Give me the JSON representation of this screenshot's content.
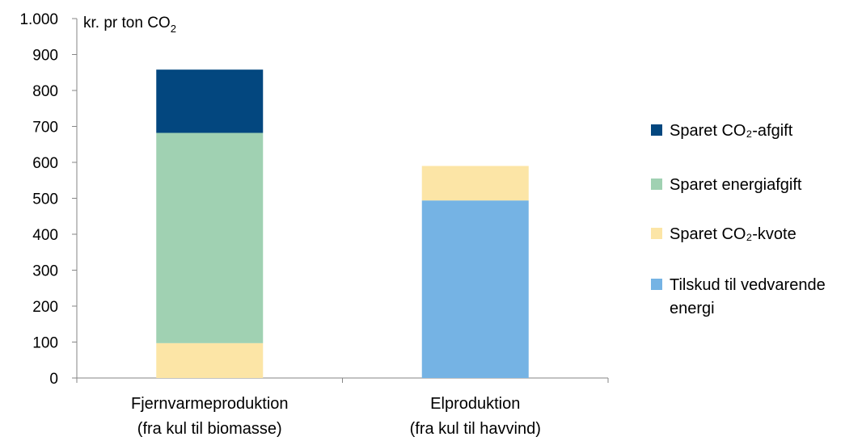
{
  "chart_data": {
    "type": "bar",
    "stacked": true,
    "unit_label": {
      "main": "kr. pr ton CO",
      "sub": "2"
    },
    "ylim": [
      0,
      1000
    ],
    "yticks": [
      {
        "value": 0,
        "label": "0"
      },
      {
        "value": 100,
        "label": "100"
      },
      {
        "value": 200,
        "label": "200"
      },
      {
        "value": 300,
        "label": "300"
      },
      {
        "value": 400,
        "label": "400"
      },
      {
        "value": 500,
        "label": "500"
      },
      {
        "value": 600,
        "label": "600"
      },
      {
        "value": 700,
        "label": "700"
      },
      {
        "value": 800,
        "label": "800"
      },
      {
        "value": 900,
        "label": "900"
      },
      {
        "value": 1000,
        "label": "1.000"
      }
    ],
    "grid": false,
    "legend_position": "right",
    "categories": [
      {
        "lines": [
          "Fjernvarmeproduktion",
          "(fra kul til biomasse)"
        ]
      },
      {
        "lines": [
          "Elproduktion",
          "(fra kul til havvind)"
        ]
      }
    ],
    "series": [
      {
        "name": "Tilskud til vedvarende energi",
        "color": "#75B3E4",
        "values": [
          0,
          494
        ]
      },
      {
        "name": "Sparet CO₂-kvote",
        "color": "#FCE5A6",
        "values": [
          97,
          96
        ]
      },
      {
        "name": "Sparet energiafgift",
        "color": "#A0D1B2",
        "values": [
          585,
          0
        ]
      },
      {
        "name": "Sparet CO₂-afgift",
        "color": "#03477F",
        "values": [
          176,
          0
        ]
      }
    ],
    "legend_order": [
      3,
      2,
      1,
      0
    ]
  }
}
